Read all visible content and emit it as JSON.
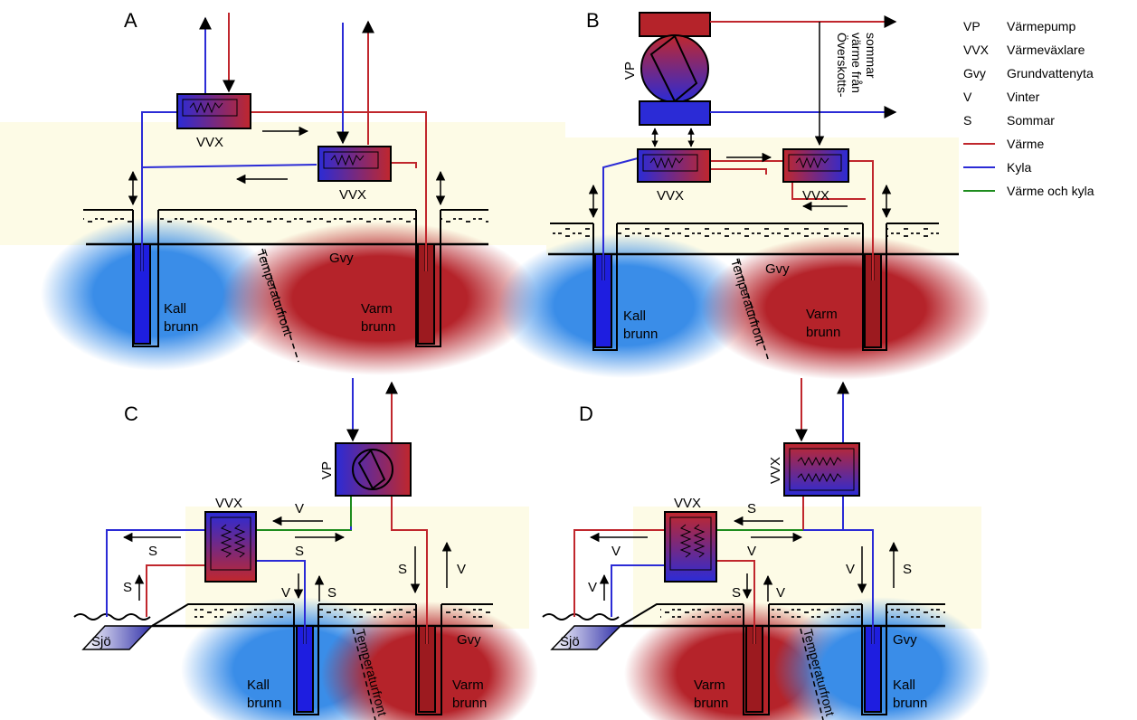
{
  "panels": {
    "A": {
      "letter": "A",
      "hx_top": "VVX",
      "hx_bottom": "VVX",
      "gvy": "Gvy",
      "front": "Temperaturfront",
      "cold_well": [
        "Kall",
        "brunn"
      ],
      "warm_well": [
        "Varm",
        "brunn"
      ]
    },
    "B": {
      "letter": "B",
      "vp": "VP",
      "hx_left": "VVX",
      "hx_right": "VVX",
      "surplus": [
        "Överskotts-",
        "värme från",
        "sommar"
      ],
      "gvy": "Gvy",
      "front": "Temperaturfront",
      "cold_well": [
        "Kall",
        "brunn"
      ],
      "warm_well": [
        "Varm",
        "brunn"
      ]
    },
    "C": {
      "letter": "C",
      "vp": "VP",
      "hx": "VVX",
      "lake": "Sjö",
      "gvy": "Gvy",
      "front": "Temperaturfront",
      "cold_well": [
        "Kall",
        "brunn"
      ],
      "warm_well": [
        "Varm",
        "brunn"
      ],
      "flow": {
        "v_top": "V",
        "s_left": "S",
        "s_right": "S",
        "s_lake": "S",
        "v_cold": "V",
        "s_cold": "S",
        "s_warm": "S",
        "v_warm": "V"
      }
    },
    "D": {
      "letter": "D",
      "hx_top": "VVX",
      "hx": "VVX",
      "lake": "Sjö",
      "gvy": "Gvy",
      "front": "Temperaturfront",
      "warm_well": [
        "Varm",
        "brunn"
      ],
      "cold_well": [
        "Kall",
        "brunn"
      ],
      "flow": {
        "s_top": "S",
        "v_left": "V",
        "v_right": "V",
        "v_lake": "V",
        "s_warm": "S",
        "v_warm": "V",
        "v_cold": "V",
        "s_cold": "S"
      }
    }
  },
  "legend": {
    "items": [
      {
        "abbr": "VP",
        "text": "Värmepump"
      },
      {
        "abbr": "VVX",
        "text": "Värmeväxlare"
      },
      {
        "abbr": "Gvy",
        "text": "Grundvattenyta"
      },
      {
        "abbr": "V",
        "text": "Vinter"
      },
      {
        "abbr": "S",
        "text": "Sommar"
      }
    ],
    "lines": [
      {
        "text": "Värme",
        "color": "#c0272d"
      },
      {
        "text": "Kyla",
        "color": "#2b2bd6"
      },
      {
        "text": "Värme och kyla",
        "color": "#1e8c1e"
      }
    ]
  },
  "colors": {
    "heat": "#c0272d",
    "cold": "#2b2bd6",
    "mixed": "#1e8c1e",
    "soil": "#fdfbe6"
  }
}
